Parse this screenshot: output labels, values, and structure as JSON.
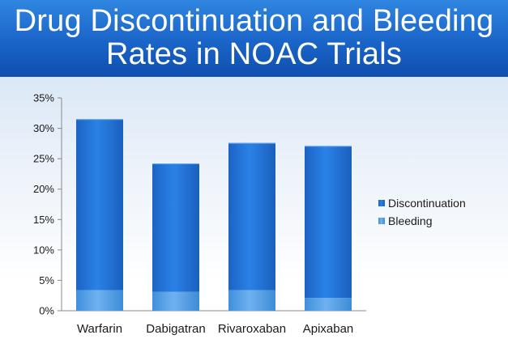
{
  "chart_data": {
    "type": "bar",
    "stacked": true,
    "title_lines": [
      "Drug Discontinuation and Bleeding",
      "Rates in NOAC Trials"
    ],
    "categories": [
      "Warfarin",
      "Dabigatran",
      "Rivaroxaban",
      "Apixaban"
    ],
    "series": [
      {
        "name": "Bleeding",
        "values": [
          3.4,
          3.1,
          3.4,
          2.1
        ],
        "color": "#5aa3e8"
      },
      {
        "name": "Discontinuation",
        "values": [
          28.1,
          21.1,
          24.2,
          25.0
        ],
        "color": "#1e6fd6"
      }
    ],
    "legend": {
      "position": "right",
      "order": [
        "Discontinuation",
        "Bleeding"
      ]
    },
    "yticks": [
      "0%",
      "5%",
      "10%",
      "15%",
      "20%",
      "25%",
      "30%",
      "35%"
    ],
    "ylim": [
      0,
      35
    ],
    "grid": false,
    "xlabel": "",
    "ylabel": ""
  }
}
